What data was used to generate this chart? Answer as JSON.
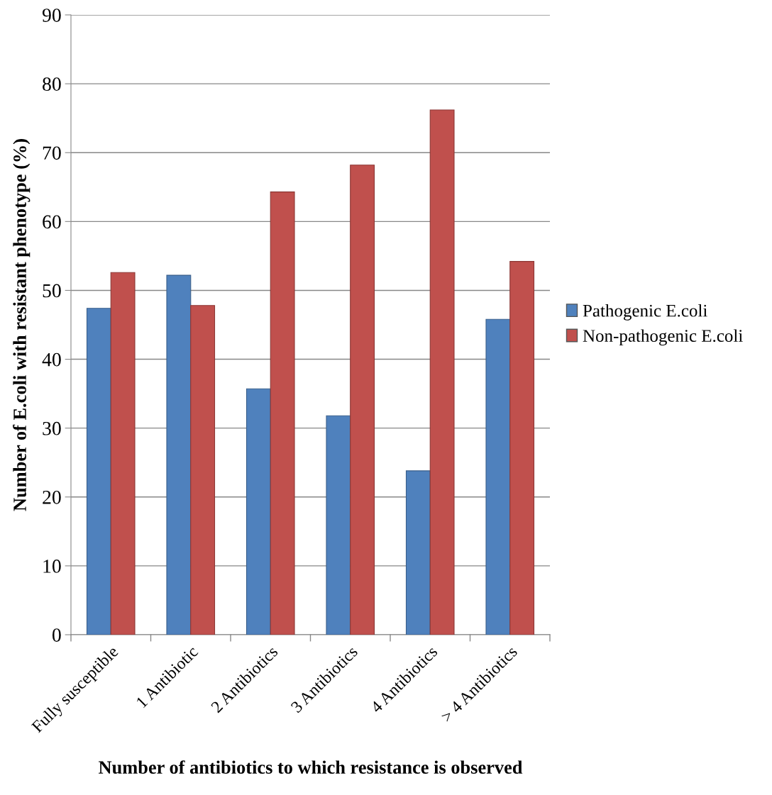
{
  "chart_data": {
    "type": "bar",
    "xlabel": "Number of antibiotics to which resistance is observed",
    "ylabel": "Number of E.coli with resistant phenotype (%)",
    "categories": [
      "Fully susceptible",
      "1 Antibiotic",
      "2 Antibiotics",
      "3 Antibiotics",
      "4 Antibiotics",
      "> 4 Antibiotics"
    ],
    "series": [
      {
        "name": "Pathogenic E.coli",
        "color": "#4f81bd",
        "values": [
          47.4,
          52.2,
          35.7,
          31.8,
          23.8,
          45.8
        ]
      },
      {
        "name": "Non-pathogenic E.coli",
        "color": "#c0504d",
        "values": [
          52.6,
          47.8,
          64.3,
          68.2,
          76.2,
          54.2
        ]
      }
    ],
    "ylim": [
      0,
      90
    ],
    "yticks": [
      0,
      10,
      20,
      30,
      40,
      50,
      60,
      70,
      80,
      90
    ],
    "grid": "y",
    "legend": "right"
  }
}
